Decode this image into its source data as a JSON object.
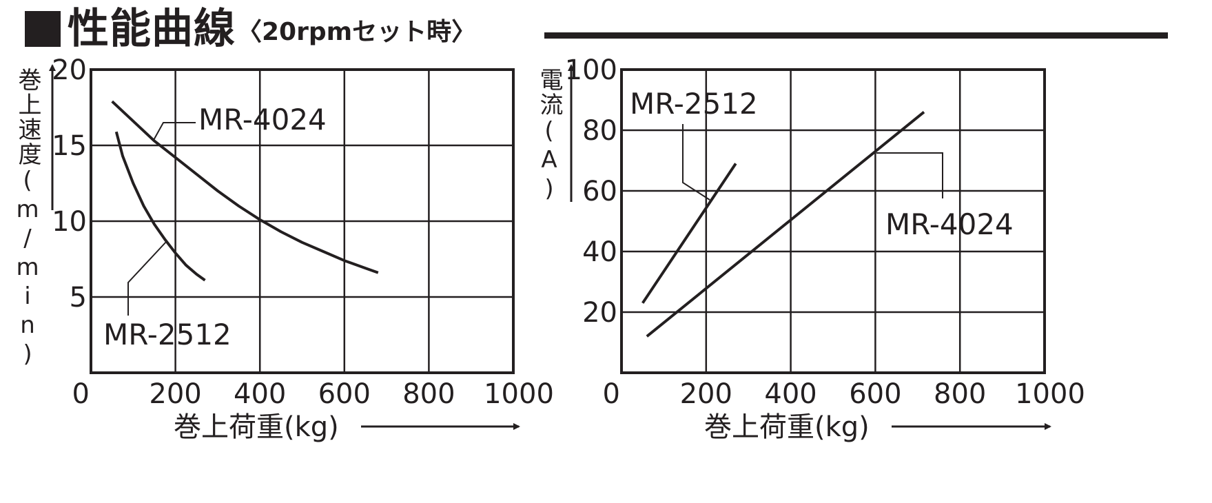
{
  "header": {
    "title": "性能曲線",
    "subtitle": "〈20rpmセット時〉"
  },
  "chart_data": [
    {
      "type": "line",
      "title": "",
      "xlabel": "巻上荷重(kg)",
      "ylabel": "巻上速度(m/min)",
      "xlim": [
        0,
        1000
      ],
      "ylim": [
        0,
        20
      ],
      "xticks": [
        "0",
        "200",
        "400",
        "600",
        "800",
        "1000"
      ],
      "yticks": [
        "5",
        "10",
        "15",
        "20"
      ],
      "grid": true,
      "series": [
        {
          "name": "MR-4024",
          "x": [
            50,
            100,
            150,
            200,
            250,
            300,
            350,
            400,
            450,
            500,
            550,
            600,
            650,
            680
          ],
          "y": [
            17.9,
            16.6,
            15.3,
            14.2,
            13.1,
            12.0,
            11.0,
            10.1,
            9.3,
            8.6,
            8.0,
            7.4,
            6.9,
            6.6
          ]
        },
        {
          "name": "MR-2512",
          "x": [
            60,
            75,
            100,
            125,
            150,
            175,
            200,
            225,
            250,
            270
          ],
          "y": [
            15.9,
            14.3,
            12.5,
            11.0,
            9.8,
            8.8,
            7.9,
            7.1,
            6.5,
            6.1
          ]
        }
      ]
    },
    {
      "type": "line",
      "title": "",
      "xlabel": "巻上荷重(kg)",
      "ylabel": "電流(A)",
      "xlim": [
        0,
        1000
      ],
      "ylim": [
        0,
        100
      ],
      "xticks": [
        "0",
        "200",
        "400",
        "600",
        "800",
        "1000"
      ],
      "yticks": [
        "20",
        "40",
        "60",
        "80",
        "100"
      ],
      "grid": true,
      "series": [
        {
          "name": "MR-2512",
          "x": [
            50,
            270
          ],
          "y": [
            23,
            69
          ]
        },
        {
          "name": "MR-4024",
          "x": [
            60,
            715
          ],
          "y": [
            12,
            86
          ]
        }
      ]
    }
  ]
}
